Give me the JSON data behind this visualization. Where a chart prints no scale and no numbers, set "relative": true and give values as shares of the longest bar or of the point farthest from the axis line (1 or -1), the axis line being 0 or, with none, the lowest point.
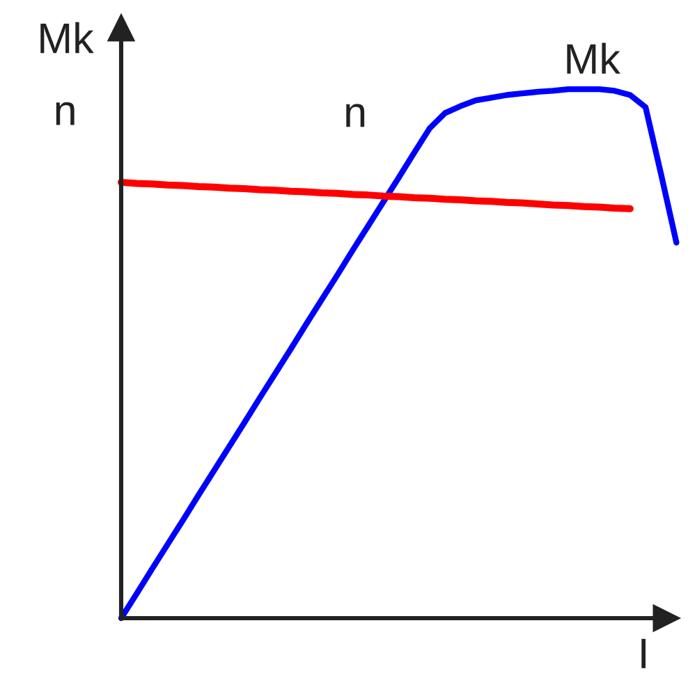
{
  "chart_data": {
    "type": "line",
    "relative": true,
    "xlabel": "I",
    "ylabel": "Mk",
    "annotations": [
      "n"
    ],
    "categories": [
      null,
      null,
      null,
      null,
      null,
      null,
      null,
      null,
      null,
      null,
      null,
      null,
      null,
      null,
      null,
      null,
      null,
      null,
      null,
      null,
      null,
      null,
      null,
      null,
      null,
      null,
      null,
      null,
      null,
      null,
      null,
      null,
      null,
      null,
      null,
      null,
      null
    ],
    "series": [
      {
        "name": "Mk",
        "color": "#0000ff",
        "values": [
          0,
          0.046,
          0.093,
          0.139,
          0.185,
          0.232,
          0.278,
          0.324,
          0.37,
          0.417,
          0.463,
          0.509,
          0.556,
          0.602,
          0.648,
          0.695,
          0.741,
          0.787,
          0.833,
          0.88,
          0.926,
          0.955,
          0.968,
          0.979,
          0.984,
          0.989,
          0.992,
          0.995,
          0.997,
          1.0,
          1.0,
          1.0,
          0.997,
          0.989,
          0.966,
          0.84,
          0.71
        ]
      },
      {
        "name": "n",
        "color": "#ff0000",
        "values": [
          0.824,
          0.822,
          0.821,
          0.819,
          0.818,
          0.816,
          0.815,
          0.813,
          0.812,
          0.81,
          0.809,
          0.807,
          0.806,
          0.804,
          0.803,
          0.801,
          0.8,
          0.798,
          0.797,
          0.795,
          0.794,
          0.792,
          0.791,
          0.789,
          0.788,
          0.786,
          0.785,
          0.783,
          0.781,
          0.78,
          0.778,
          0.777,
          0.775,
          0.774,
          null,
          null,
          null
        ]
      }
    ]
  }
}
